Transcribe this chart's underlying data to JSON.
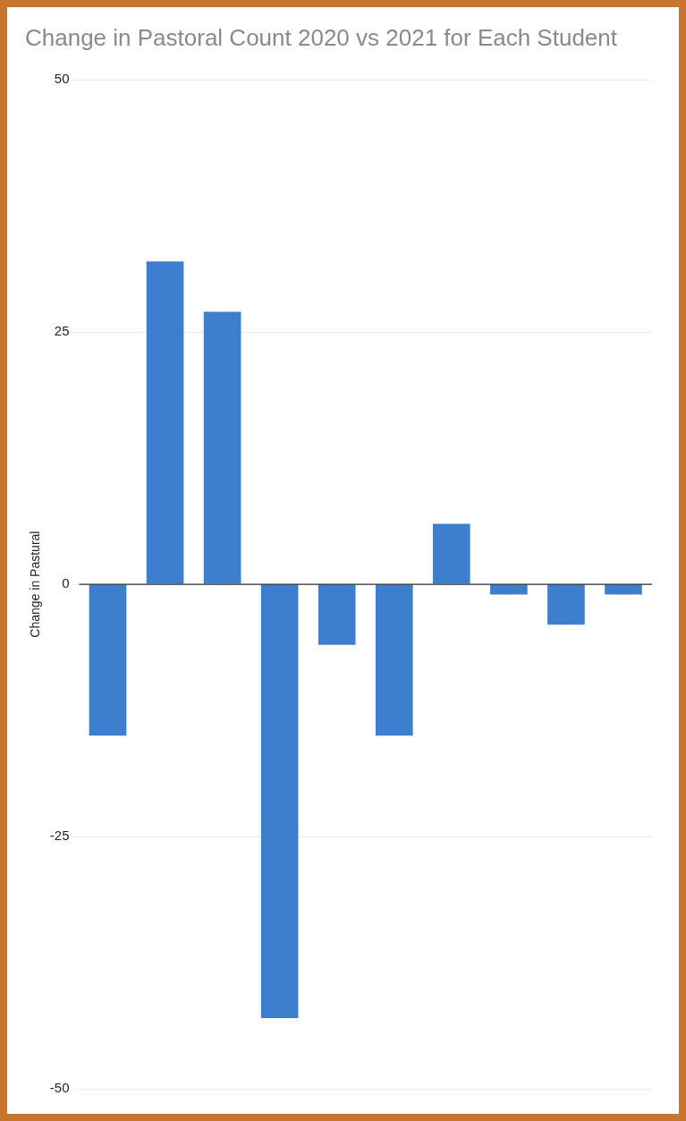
{
  "chart_data": {
    "type": "bar",
    "title": "Change in Pastoral Count 2020 vs 2021 for Each Student",
    "ylabel": "Change in Pastural",
    "categories": [
      null,
      null,
      null,
      null,
      null,
      null,
      null,
      null,
      null,
      null
    ],
    "values": [
      -15,
      32,
      27,
      -43,
      -6,
      -15,
      6,
      -1,
      -4,
      -1
    ],
    "color": "#3d7fcc",
    "ylim": [
      -50,
      50
    ],
    "yticks": [
      -50,
      -25,
      0,
      25,
      50
    ],
    "grid": "y",
    "tick_labels": "y"
  }
}
